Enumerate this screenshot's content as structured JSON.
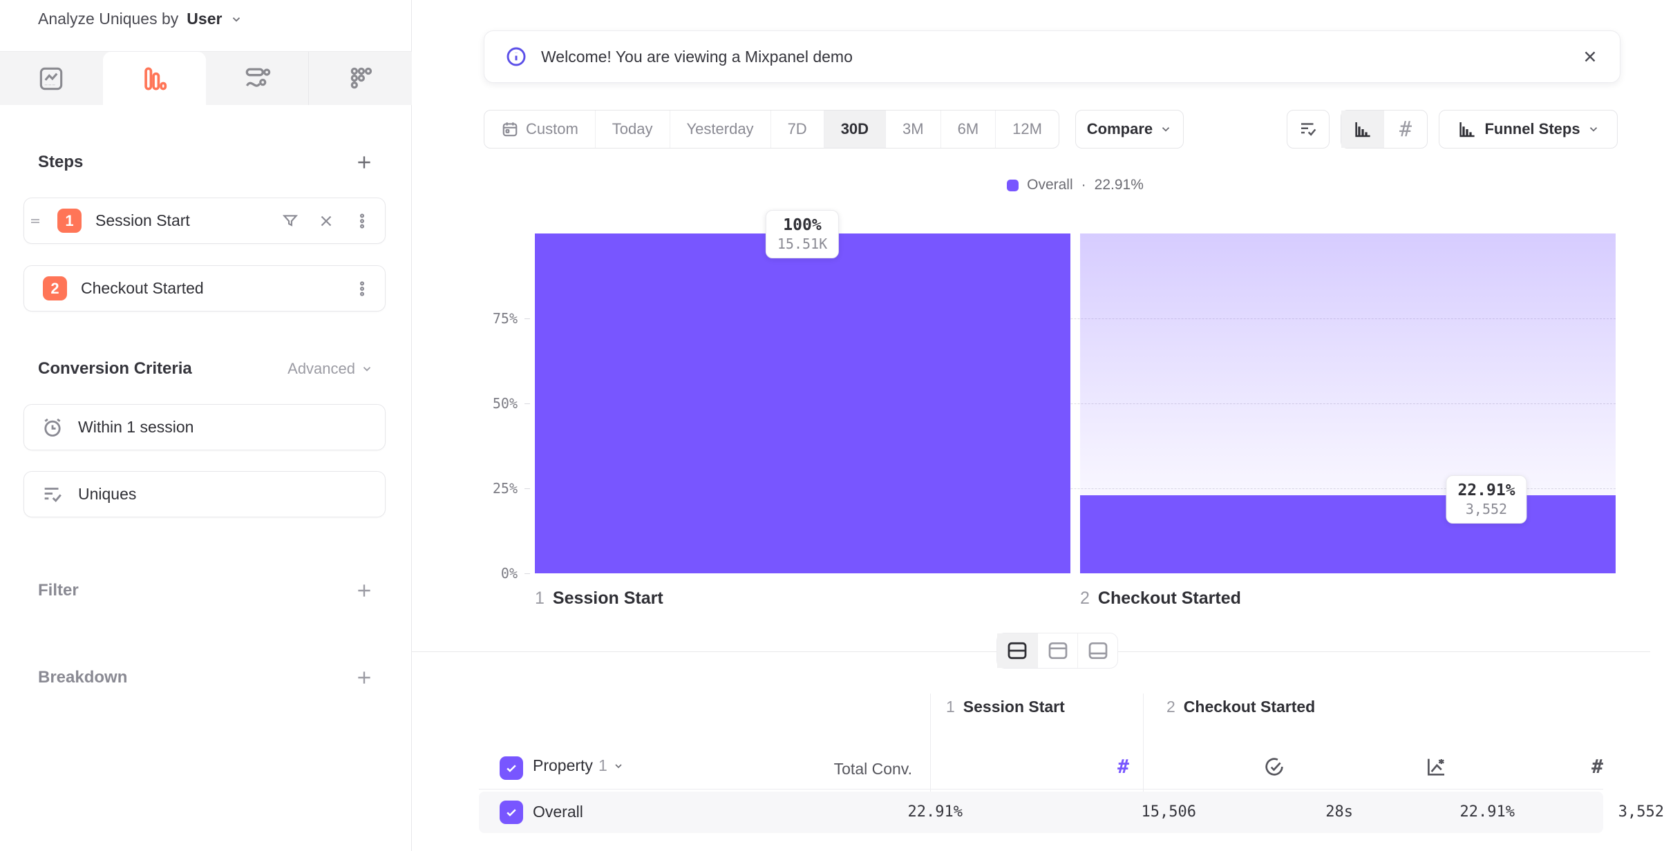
{
  "sidebar": {
    "analyze_label": "Analyze Uniques by",
    "analyze_value": "User",
    "tabs": [
      {
        "icon": "insights-chart",
        "selected": false
      },
      {
        "icon": "funnel-bars",
        "selected": true
      },
      {
        "icon": "flows",
        "selected": false
      },
      {
        "icon": "retention-grid",
        "selected": false
      }
    ],
    "steps": {
      "title": "Steps",
      "items": [
        {
          "num": "1",
          "label": "Session Start"
        },
        {
          "num": "2",
          "label": "Checkout Started"
        }
      ]
    },
    "conversion_criteria": {
      "title": "Conversion Criteria",
      "advanced_label": "Advanced",
      "items": [
        {
          "label": "Within 1 session",
          "icon": "alarm-clock"
        },
        {
          "label": "Uniques",
          "icon": "list-check"
        }
      ]
    },
    "filter_title": "Filter",
    "breakdown_title": "Breakdown"
  },
  "banner": {
    "message": "Welcome! You are viewing a Mixpanel demo"
  },
  "toolbar": {
    "date_ranges": [
      "Custom",
      "Today",
      "Yesterday",
      "7D",
      "30D",
      "3M",
      "6M",
      "12M"
    ],
    "selected_range": "30D",
    "compare_label": "Compare",
    "funnel_steps_label": "Funnel Steps"
  },
  "legend": {
    "label": "Overall",
    "separator": "·",
    "value": "22.91%"
  },
  "chart": {
    "y_ticks": [
      "75%",
      "50%",
      "25%",
      "0%"
    ],
    "badges": [
      {
        "pct": "100%",
        "count": "15.51K"
      },
      {
        "pct": "22.91%",
        "count": "3,552"
      }
    ],
    "x_labels": [
      {
        "num": "1",
        "label": "Session Start"
      },
      {
        "num": "2",
        "label": "Checkout Started"
      }
    ]
  },
  "chart_data": {
    "type": "bar",
    "subtype": "funnel",
    "categories": [
      "1 Session Start",
      "2 Checkout Started"
    ],
    "series": [
      {
        "name": "Overall",
        "values": [
          100,
          22.91
        ],
        "counts": [
          15506,
          3552
        ]
      }
    ],
    "value_labels": [
      "100%",
      "22.91%"
    ],
    "count_labels": [
      "15.51K",
      "3,552"
    ],
    "overall_conversion_pct": 22.91,
    "ylim": [
      0,
      100
    ],
    "yticks_pct": [
      0,
      25,
      50,
      75
    ],
    "grid": "horizontal-dashed",
    "legend_position": "top-center",
    "bar_color": "#7856FF"
  },
  "table": {
    "groups": [
      {
        "num": "1",
        "label": "Session Start"
      },
      {
        "num": "2",
        "label": "Checkout Started"
      }
    ],
    "property_label": "Property",
    "property_num": "1",
    "total_conv_label": "Total Conv.",
    "row": {
      "label": "Overall",
      "total_conv": "22.91%",
      "session_start_uniques": "15,506",
      "avg_time_to_convert": "28s",
      "conversion_rate": "22.91%",
      "converted_uniques": "3,552"
    }
  },
  "colors": {
    "accent_purple": "#7856FF",
    "step_badge_orange": "#FF7557",
    "text_primary": "#35353C",
    "text_secondary": "#8A8A93",
    "border": "#E7E7EA",
    "grid_line": "#DCDCE2",
    "selected_bg": "#F1F1F2",
    "row_bg": "#F7F7F9"
  }
}
